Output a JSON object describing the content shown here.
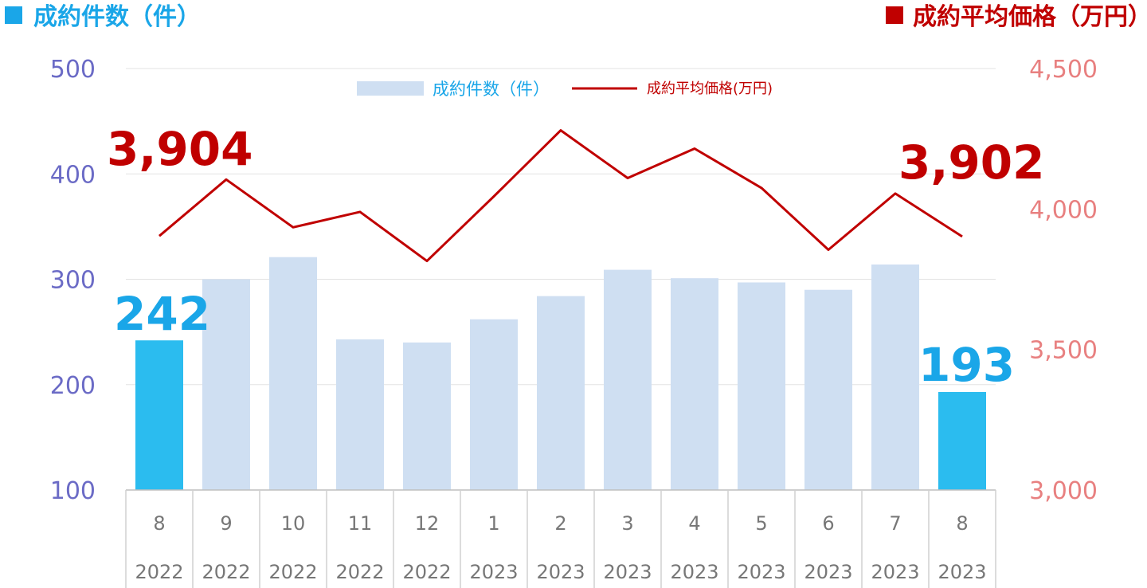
{
  "header": {
    "left_title": "成約件数（件）",
    "right_title": "成約平均価格（万円）",
    "left_color": "#1aa6e8",
    "right_color": "#c00000"
  },
  "legend": {
    "count_label": "成約件数（件）",
    "price_label": "成約平均価格(万円)"
  },
  "chart_data": {
    "type": "bar",
    "categories": [
      {
        "month": "8",
        "year": "2022"
      },
      {
        "month": "9",
        "year": "2022"
      },
      {
        "month": "10",
        "year": "2022"
      },
      {
        "month": "11",
        "year": "2022"
      },
      {
        "month": "12",
        "year": "2022"
      },
      {
        "month": "1",
        "year": "2023"
      },
      {
        "month": "2",
        "year": "2023"
      },
      {
        "month": "3",
        "year": "2023"
      },
      {
        "month": "4",
        "year": "2023"
      },
      {
        "month": "5",
        "year": "2023"
      },
      {
        "month": "6",
        "year": "2023"
      },
      {
        "month": "7",
        "year": "2023"
      },
      {
        "month": "8",
        "year": "2023"
      }
    ],
    "series": [
      {
        "name": "成約件数（件）",
        "type": "bar",
        "axis": "left",
        "values": [
          242,
          300,
          321,
          243,
          240,
          262,
          284,
          309,
          301,
          297,
          290,
          314,
          193
        ],
        "color": "#cfdff2",
        "highlight_color": "#2bbcef",
        "highlight_indices": [
          0,
          12
        ]
      },
      {
        "name": "成約平均価格(万円)",
        "type": "line",
        "axis": "right",
        "values": [
          3904,
          4105,
          3935,
          3990,
          3815,
          4045,
          4280,
          4110,
          4215,
          4075,
          3855,
          4055,
          3902
        ],
        "color": "#c00000"
      }
    ],
    "y_left": {
      "min": 100,
      "max": 500,
      "ticks": [
        "100",
        "200",
        "300",
        "400",
        "500"
      ]
    },
    "y_right": {
      "min": 3000,
      "max": 4500,
      "ticks": [
        "3,000",
        "3,500",
        "4,000",
        "4,500"
      ]
    },
    "grid": true,
    "legend_position": "top-center",
    "annotations": {
      "first_price": "3,904",
      "last_price": "3,902",
      "first_count": "242",
      "last_count": "193"
    }
  }
}
